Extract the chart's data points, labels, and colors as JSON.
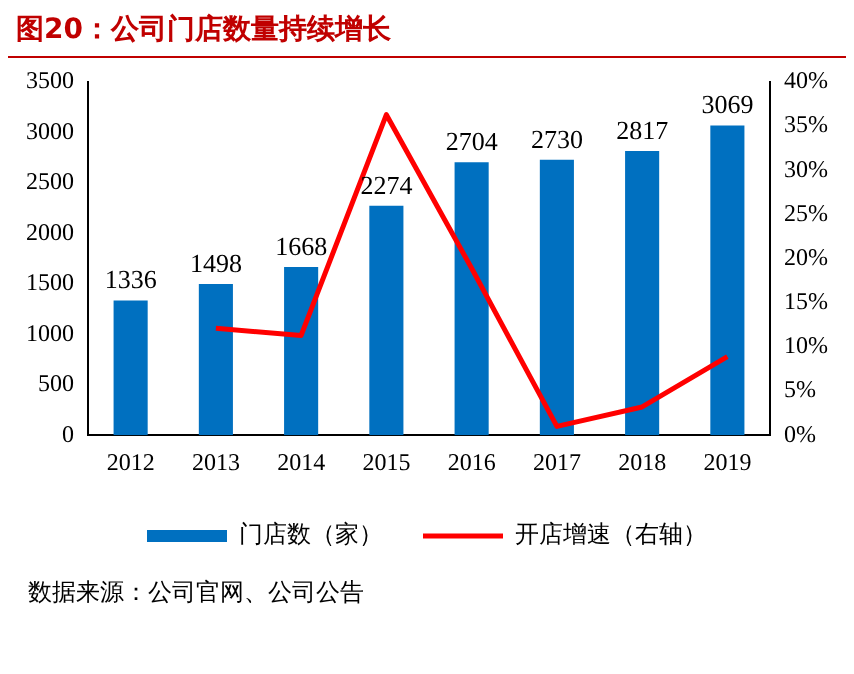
{
  "chart_data": {
    "type": "bar",
    "title": "图20：公司门店数量持续增长",
    "categories": [
      "2012",
      "2013",
      "2014",
      "2015",
      "2016",
      "2017",
      "2018",
      "2019"
    ],
    "series": [
      {
        "name": "门店数（家）",
        "color": "#0070c0",
        "values": [
          1336,
          1498,
          1668,
          2274,
          2704,
          2730,
          2817,
          3069
        ],
        "value_labels": [
          "1336",
          "1498",
          "1668",
          "2274",
          "2704",
          "2730",
          "2817",
          "3069"
        ]
      },
      {
        "name": "开店增速（右轴）",
        "type": "line",
        "axis": "y2",
        "color": "#ff0000",
        "values": [
          null,
          12.1,
          11.3,
          36.3,
          18.9,
          1.0,
          3.2,
          8.9
        ]
      }
    ],
    "ylim": [
      0,
      3500
    ],
    "yticks": [
      0,
      500,
      1000,
      1500,
      2000,
      2500,
      3000,
      3500
    ],
    "y2lim": [
      0,
      40
    ],
    "y2ticks": [
      {
        "value": 0,
        "label": "0%"
      },
      {
        "value": 5,
        "label": "5%"
      },
      {
        "value": 10,
        "label": "10%"
      },
      {
        "value": 15,
        "label": "15%"
      },
      {
        "value": 20,
        "label": "20%"
      },
      {
        "value": 25,
        "label": "25%"
      },
      {
        "value": 30,
        "label": "30%"
      },
      {
        "value": 35,
        "label": "35%"
      },
      {
        "value": 40,
        "label": "40%"
      }
    ],
    "legend": "bottom",
    "grid": false,
    "annotations": [
      "数据来源：公司官网、公司公告"
    ]
  }
}
